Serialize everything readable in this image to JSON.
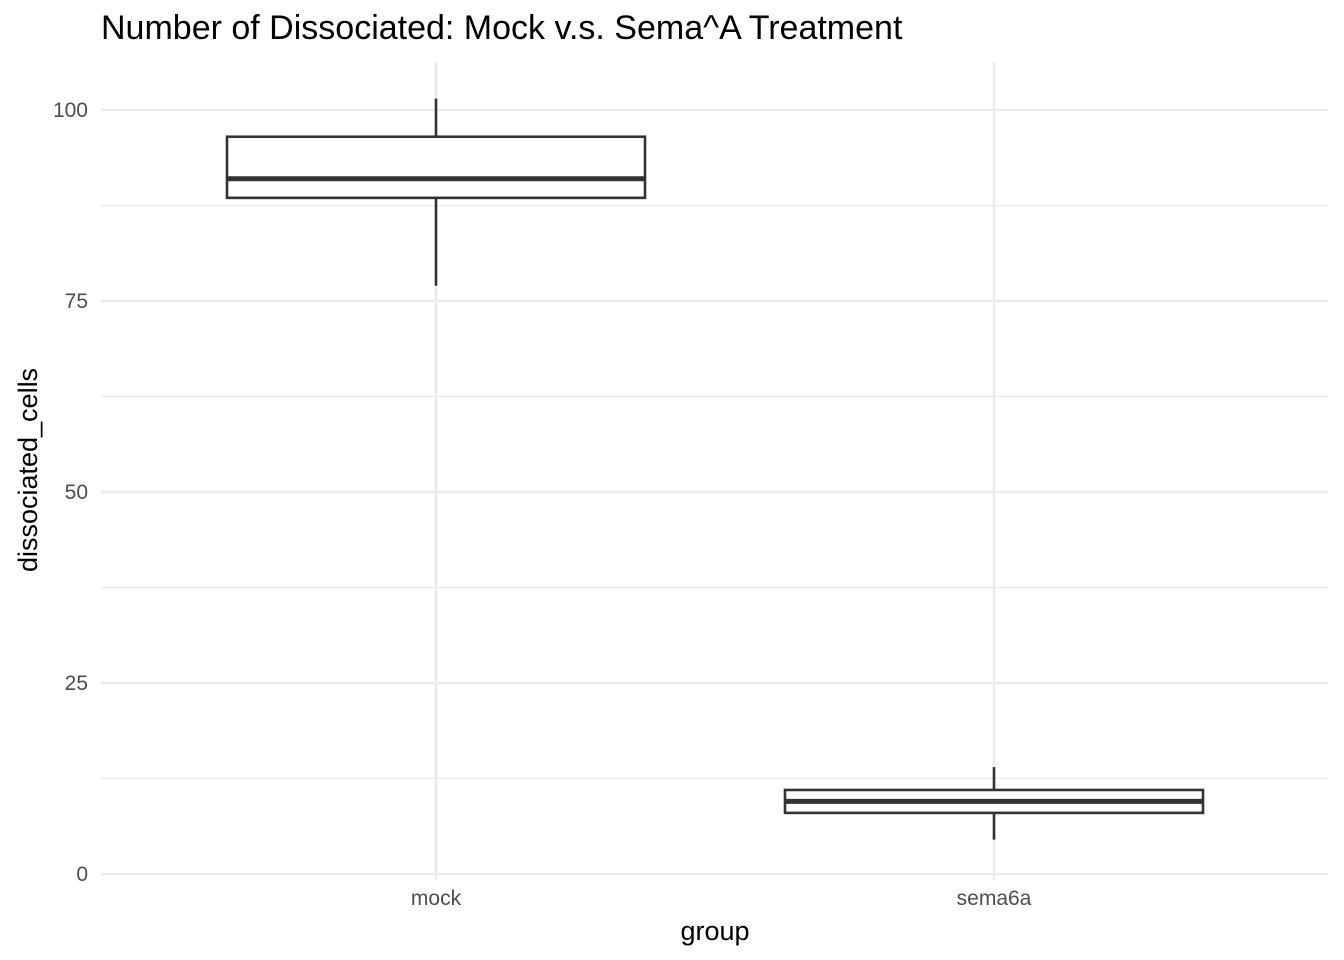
{
  "chart_data": {
    "type": "boxplot",
    "title": "Number of Dissociated: Mock v.s. Sema^A Treatment",
    "xlabel": "group",
    "ylabel": "dissociated_cells",
    "categories": [
      "mock",
      "sema6a"
    ],
    "boxes": [
      {
        "category": "mock",
        "min": 77,
        "q1": 88.5,
        "median": 91,
        "q3": 96.5,
        "max": 101.5
      },
      {
        "category": "sema6a",
        "min": 4.5,
        "q1": 8,
        "median": 9.5,
        "q3": 11,
        "max": 14
      }
    ],
    "ylim": [
      0,
      106.5
    ],
    "yticks": [
      0,
      25,
      50,
      75,
      100
    ],
    "yminor": [
      12.5,
      37.5,
      62.5,
      87.5
    ],
    "grid": true,
    "legend": "none",
    "colors": {
      "box_fill": "#ffffff",
      "box_stroke": "#333333",
      "grid": "#ebebeb",
      "tick_text": "#4d4d4d"
    }
  }
}
